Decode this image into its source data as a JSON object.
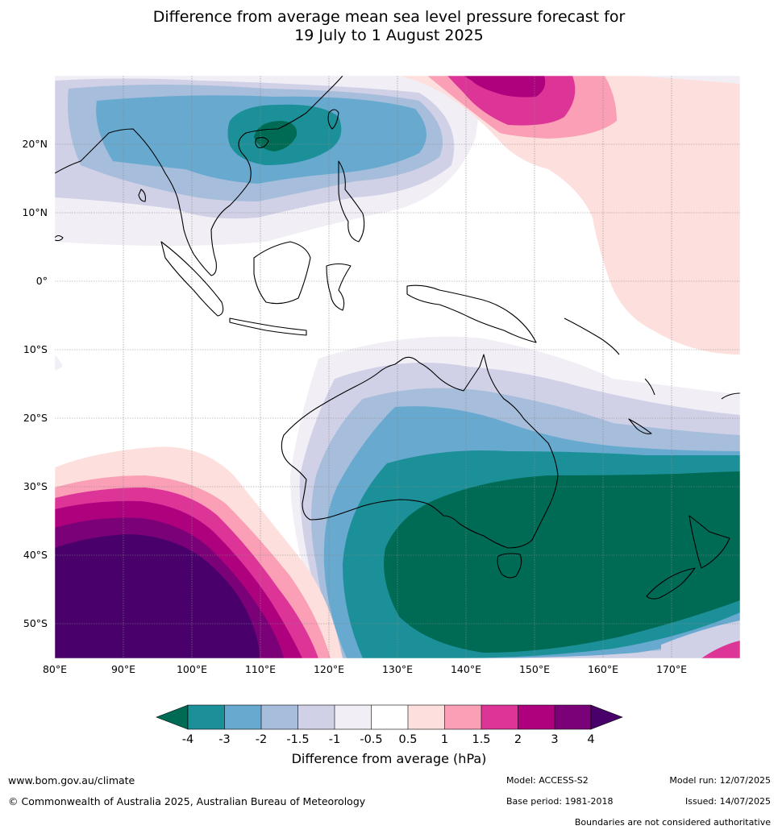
{
  "title_line1": "Difference from average mean sea level pressure forecast for",
  "title_line2": "19 July to 1 August 2025",
  "axes": {
    "lon_ticks": [
      "80°E",
      "90°E",
      "100°E",
      "110°E",
      "120°E",
      "130°E",
      "140°E",
      "150°E",
      "160°E",
      "170°E"
    ],
    "lat_ticks": [
      "20°N",
      "10°N",
      "0°",
      "10°S",
      "20°S",
      "30°S",
      "40°S",
      "50°S"
    ]
  },
  "colorbar": {
    "title": "Difference from average (hPa)",
    "tick_labels": [
      "-4",
      "-3",
      "-2",
      "-1.5",
      "-1",
      "-0.5",
      "0.5",
      "1",
      "1.5",
      "2",
      "3",
      "4"
    ],
    "colors": [
      "#006b54",
      "#1c9099",
      "#67a9cf",
      "#a6bddb",
      "#d0d1e6",
      "#f1eef6",
      "#ffffff",
      "#fde0dd",
      "#fa9fb5",
      "#dd3497",
      "#ae017e",
      "#7a0177",
      "#49006a"
    ]
  },
  "footer": {
    "website": "www.bom.gov.au/climate",
    "copyright": "© Commonwealth of Australia 2025, Australian Bureau of Meteorology",
    "model": "Model: ACCESS-S2",
    "base_period": "Base period: 1981-2018",
    "model_run": "Model run: 12/07/2025",
    "issued": "Issued: 14/07/2025",
    "disclaimer": "Boundaries are not considered authoritative"
  }
}
